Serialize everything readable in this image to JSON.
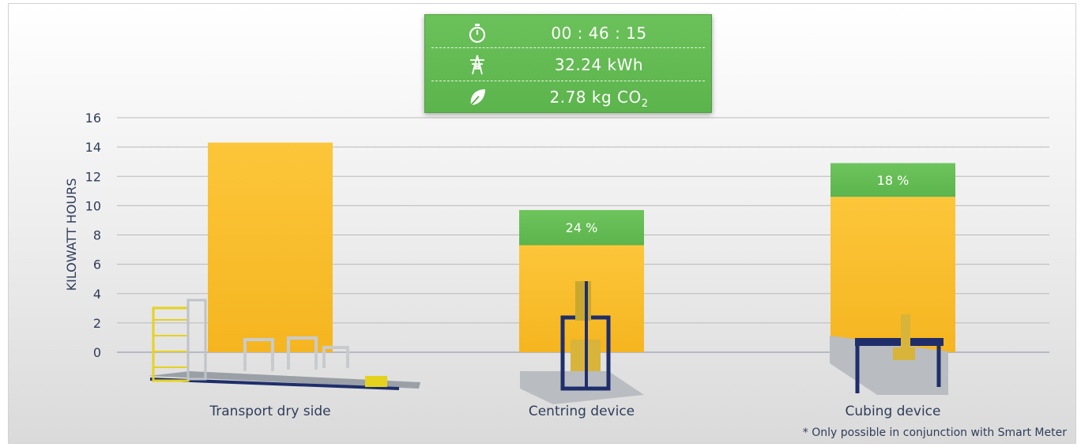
{
  "info": {
    "time": "00 : 46 : 15",
    "energy": "32.24 kWh",
    "co2_value": "2.78 kg CO",
    "co2_sub": "2",
    "icons": [
      "stopwatch-icon",
      "power-pylon-icon",
      "leaf-icon"
    ]
  },
  "footnote": "* Only possible in conjunction with Smart Meter",
  "colors": {
    "bar": "#f5b520",
    "savings": "#5cb44c",
    "axis_text": "#2f3d5a",
    "grid": "#b9b9b9"
  },
  "chart_data": {
    "type": "bar",
    "ylabel": "KILOWATT HOURS",
    "ylim": [
      0,
      16
    ],
    "yticks": [
      0,
      2,
      4,
      6,
      8,
      10,
      12,
      14,
      16
    ],
    "grid": true,
    "categories": [
      "Transport dry side",
      "Centring device",
      "Cubing device"
    ],
    "series": [
      {
        "values": [
          14.3,
          7.3,
          10.6
        ]
      },
      {
        "values": [
          0,
          2.4,
          2.3
        ]
      }
    ],
    "data_labels": [
      "",
      "24 %",
      "18 %"
    ]
  }
}
